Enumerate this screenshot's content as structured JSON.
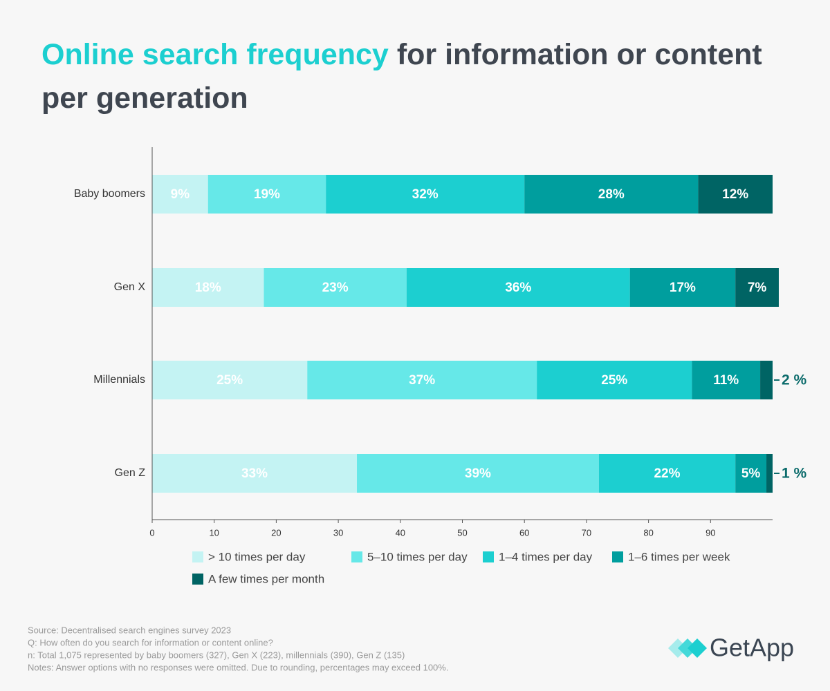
{
  "chart_data": {
    "type": "stacked_barh",
    "title_highlight": "Online search frequency",
    "title_rest": "for information or content per generation",
    "categories": [
      "Baby boomers",
      "Gen X",
      "Millennials",
      "Gen Z"
    ],
    "series": [
      {
        "name": "> 10 times per day",
        "color": "#c4f3f3",
        "values": [
          9,
          18,
          25,
          33
        ],
        "value_labels": [
          "9%",
          "18%",
          "25%",
          "33%"
        ]
      },
      {
        "name": "5–10 times per day",
        "color": "#66e8e8",
        "values": [
          19,
          23,
          37,
          39
        ],
        "value_labels": [
          "19%",
          "23%",
          "37%",
          "39%"
        ]
      },
      {
        "name": "1–4 times per day",
        "color": "#1ccfd0",
        "values": [
          32,
          36,
          25,
          22
        ],
        "value_labels": [
          "32%",
          "36%",
          "25%",
          "22%"
        ]
      },
      {
        "name": "1–6 times per week",
        "color": "#009e9e",
        "values": [
          28,
          17,
          11,
          5
        ],
        "value_labels": [
          "28%",
          "17%",
          "11%",
          "5%"
        ]
      },
      {
        "name": "A few times per month",
        "color": "#006464",
        "values": [
          12,
          7,
          2,
          1
        ],
        "value_labels": [
          "12%",
          "7%",
          "2 %",
          "1 %"
        ]
      }
    ],
    "xlim": [
      0,
      100
    ],
    "xticks": [
      0,
      10,
      20,
      30,
      40,
      50,
      60,
      70,
      80,
      90
    ],
    "footnotes": [
      "Source: Decentralised search engines survey 2023",
      "Q: How often do you search for information or content online?",
      "n: Total 1,075 represented by baby boomers (327), Gen X (223), millennials (390), Gen Z (135)",
      "Notes: Answer options with no responses were omitted. Due to rounding, percentages may exceed 100%."
    ],
    "logo": "GetApp"
  }
}
